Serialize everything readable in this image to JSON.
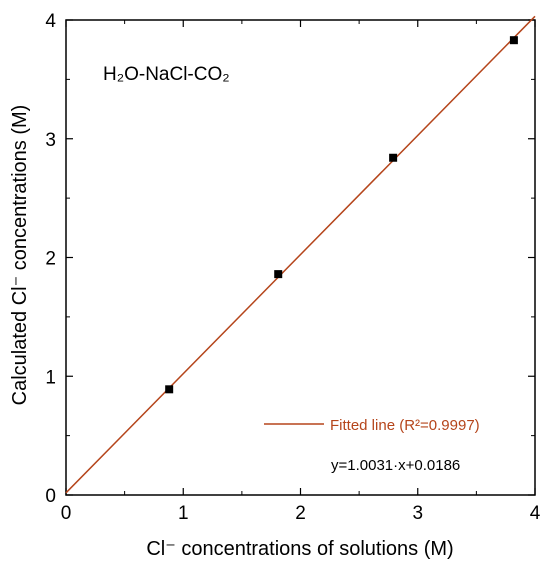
{
  "chart_data": {
    "type": "scatter",
    "title": "",
    "xlabel": "Cl⁻ concentrations of solutions (M)",
    "ylabel": "Calculated Cl⁻ concentrations (M)",
    "xlim": [
      0,
      4
    ],
    "ylim": [
      0,
      4
    ],
    "x_ticks": [
      "0",
      "1",
      "2",
      "3",
      "4"
    ],
    "y_ticks": [
      "0",
      "1",
      "2",
      "3",
      "4"
    ],
    "grid": false,
    "system_label": "H₂O-NaCl-CO₂",
    "series": [
      {
        "type": "scatter",
        "x": [
          0.88,
          1.81,
          2.79,
          3.82
        ],
        "y": [
          0.89,
          1.86,
          2.84,
          3.83
        ],
        "color": "#000000"
      },
      {
        "type": "line",
        "name": "Fitted line (R²=0.9997)",
        "x": [
          0,
          4
        ],
        "y": [
          0.0186,
          4.031
        ],
        "color": "#b5451b"
      }
    ],
    "legend": {
      "position": "bottom-right",
      "label": "Fitted line (R²=0.9997)",
      "color": "#b5451b"
    },
    "annotations": [
      "y=1.0031·x+0.0186"
    ]
  }
}
